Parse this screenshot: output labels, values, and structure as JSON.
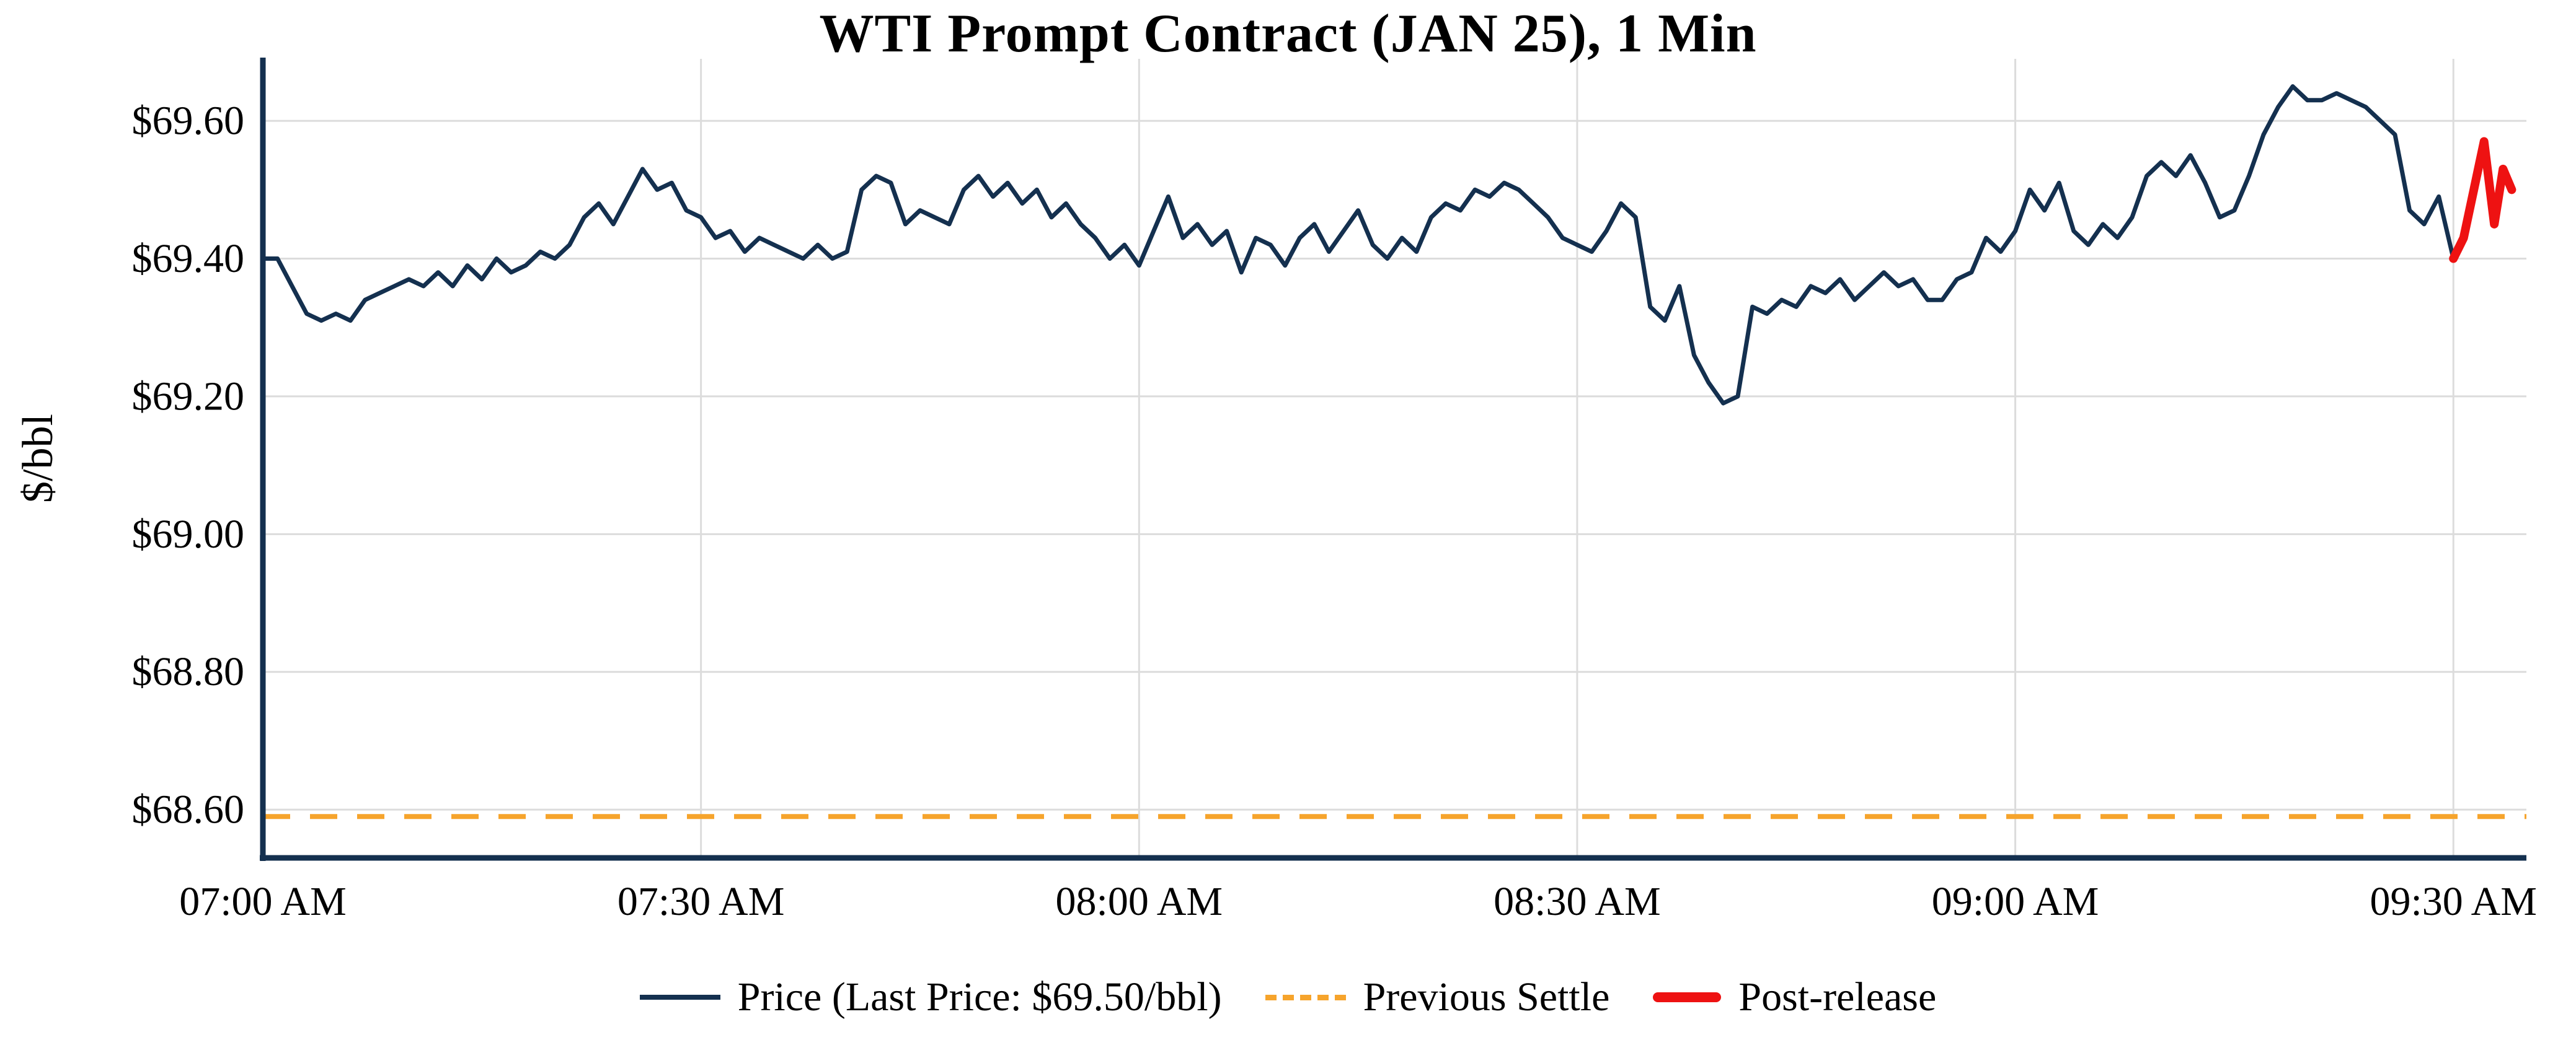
{
  "title": "WTI Prompt Contract (JAN 25), 1 Min",
  "y_axis_label": "$/bbl",
  "colors": {
    "price_line": "#14304f",
    "post_release_line": "#ee1212",
    "settle_line": "#f6a42c",
    "gridline": "#dcdcdc",
    "axis_spine": "#14304f"
  },
  "legend": {
    "price_label": "Price (Last Price: $69.50/bbl)",
    "settle_label": "Previous Settle",
    "post_label": "Post-release"
  },
  "chart_data": {
    "type": "line",
    "title": "WTI Prompt Contract (JAN 25), 1 Min",
    "xlabel": "",
    "ylabel": "$/bbl",
    "x_unit": "minutes since 07:00 AM",
    "xlim": [
      0,
      155
    ],
    "ylim": [
      68.53,
      69.69
    ],
    "x_ticks": [
      0,
      30,
      60,
      90,
      120,
      150
    ],
    "x_tick_labels": [
      "07:00 AM",
      "07:30 AM",
      "08:00 AM",
      "08:30 AM",
      "09:00 AM",
      "09:30 AM"
    ],
    "y_ticks": [
      68.6,
      68.8,
      69.0,
      69.2,
      69.4,
      69.6
    ],
    "y_tick_labels": [
      "$68.60",
      "$68.80",
      "$69.00",
      "$69.20",
      "$69.40",
      "$69.60"
    ],
    "grid": true,
    "legend_position": "bottom",
    "previous_settle": 68.59,
    "last_price": 69.5,
    "series": [
      {
        "name": "price-series-line",
        "label": "Price (Last Price: $69.50/bbl)",
        "color": "#14304f",
        "x_start": 0,
        "x_step": 1,
        "values": [
          69.4,
          69.4,
          69.36,
          69.32,
          69.31,
          69.32,
          69.31,
          69.34,
          69.35,
          69.36,
          69.37,
          69.36,
          69.38,
          69.36,
          69.39,
          69.37,
          69.4,
          69.38,
          69.39,
          69.41,
          69.4,
          69.42,
          69.46,
          69.48,
          69.45,
          69.49,
          69.53,
          69.5,
          69.51,
          69.47,
          69.46,
          69.43,
          69.44,
          69.41,
          69.43,
          69.42,
          69.41,
          69.4,
          69.42,
          69.4,
          69.41,
          69.5,
          69.52,
          69.51,
          69.45,
          69.47,
          69.46,
          69.45,
          69.5,
          69.52,
          69.49,
          69.51,
          69.48,
          69.5,
          69.46,
          69.48,
          69.45,
          69.43,
          69.4,
          69.42,
          69.39,
          69.44,
          69.49,
          69.43,
          69.45,
          69.42,
          69.44,
          69.38,
          69.43,
          69.42,
          69.39,
          69.43,
          69.45,
          69.41,
          69.44,
          69.47,
          69.42,
          69.4,
          69.43,
          69.41,
          69.46,
          69.48,
          69.47,
          69.5,
          69.49,
          69.51,
          69.5,
          69.48,
          69.46,
          69.43,
          69.42,
          69.41,
          69.44,
          69.48,
          69.46,
          69.33,
          69.31,
          69.36,
          69.26,
          69.22,
          69.19,
          69.2,
          69.33,
          69.32,
          69.34,
          69.33,
          69.36,
          69.35,
          69.37,
          69.34,
          69.36,
          69.38,
          69.36,
          69.37,
          69.34,
          69.34,
          69.37,
          69.38,
          69.43,
          69.41,
          69.44,
          69.5,
          69.47,
          69.51,
          69.44,
          69.42,
          69.45,
          69.43,
          69.46,
          69.52,
          69.54,
          69.52,
          69.55,
          69.51,
          69.46,
          69.47,
          69.52,
          69.58,
          69.62,
          69.65,
          69.63,
          69.63,
          69.64,
          69.63,
          69.62,
          69.6,
          69.58,
          69.47,
          69.45,
          69.49,
          69.4
        ]
      },
      {
        "name": "post-release-series-line",
        "label": "Post-release",
        "color": "#ee1212",
        "x": [
          150,
          150.7,
          151.4,
          152.1,
          152.8,
          153.4,
          154
        ],
        "values": [
          69.4,
          69.43,
          69.5,
          69.57,
          69.45,
          69.53,
          69.5
        ]
      }
    ]
  }
}
